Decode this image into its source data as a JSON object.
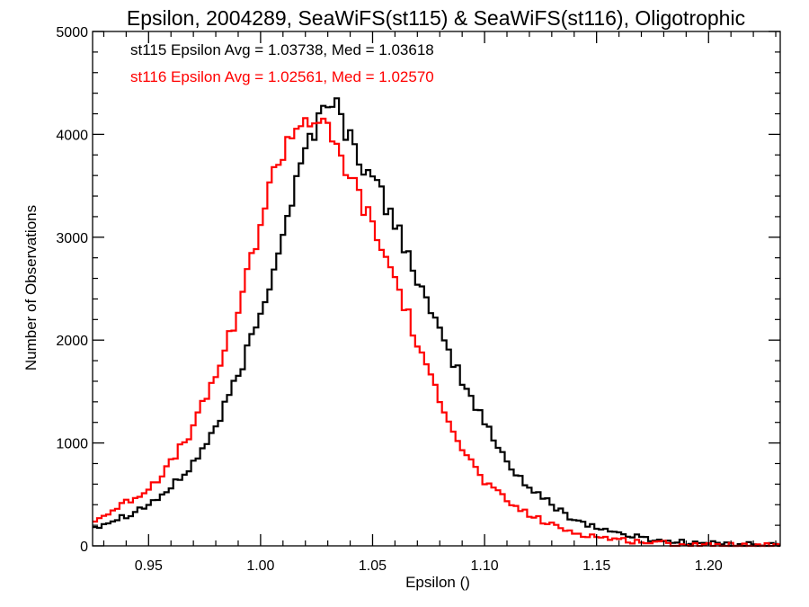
{
  "chart_data": {
    "type": "line",
    "step": true,
    "title": "Epsilon, 2004289, SeaWiFS(st115) & SeaWiFS(st116), Oligotrophic",
    "xlabel": "Epsilon ()",
    "ylabel": "Number of Observations",
    "xlim": [
      0.925,
      1.232
    ],
    "ylim": [
      0,
      5000
    ],
    "x_ticks": [
      0.95,
      1.0,
      1.05,
      1.1,
      1.15,
      1.2
    ],
    "x_tick_labels": [
      "0.95",
      "1.00",
      "1.05",
      "1.10",
      "1.15",
      "1.20"
    ],
    "y_ticks": [
      0,
      1000,
      2000,
      3000,
      4000,
      5000
    ],
    "y_tick_labels": [
      "0",
      "1000",
      "2000",
      "3000",
      "4000",
      "5000"
    ],
    "grid": false,
    "annotations": [
      {
        "text": "st115 Epsilon Avg = 1.03738, Med = 1.03618",
        "color": "#000000"
      },
      {
        "text": "st116 Epsilon Avg = 1.02561, Med = 1.02570",
        "color": "#ff0000"
      }
    ],
    "series": [
      {
        "color": "#000000",
        "x": [
          0.925,
          0.94,
          0.95,
          0.96,
          0.97,
          0.98,
          0.99,
          0.995,
          1.0,
          1.005,
          1.01,
          1.015,
          1.02,
          1.025,
          1.028,
          1.032,
          1.035,
          1.04,
          1.045,
          1.05,
          1.055,
          1.06,
          1.065,
          1.07,
          1.075,
          1.08,
          1.085,
          1.09,
          1.095,
          1.1,
          1.105,
          1.11,
          1.12,
          1.13,
          1.14,
          1.15,
          1.16,
          1.17,
          1.18,
          1.19,
          1.2,
          1.21,
          1.22,
          1.232
        ],
        "y": [
          180,
          300,
          400,
          560,
          800,
          1150,
          1650,
          1950,
          2250,
          2650,
          3050,
          3450,
          3850,
          4100,
          4250,
          4380,
          4200,
          3950,
          3750,
          3550,
          3350,
          3150,
          2900,
          2600,
          2300,
          2050,
          1850,
          1600,
          1400,
          1200,
          1000,
          820,
          560,
          400,
          260,
          180,
          120,
          80,
          50,
          35,
          25,
          15,
          10,
          5
        ]
      },
      {
        "color": "#ff0000",
        "x": [
          0.925,
          0.94,
          0.95,
          0.96,
          0.97,
          0.98,
          0.99,
          0.995,
          1.0,
          1.005,
          1.01,
          1.015,
          1.02,
          1.025,
          1.03,
          1.035,
          1.04,
          1.045,
          1.05,
          1.055,
          1.06,
          1.065,
          1.07,
          1.075,
          1.08,
          1.085,
          1.09,
          1.095,
          1.1,
          1.11,
          1.12,
          1.13,
          1.14,
          1.15,
          1.16,
          1.17,
          1.18,
          1.19,
          1.2,
          1.21,
          1.22,
          1.232
        ],
        "y": [
          230,
          420,
          560,
          800,
          1150,
          1650,
          2300,
          2700,
          3150,
          3550,
          3850,
          4050,
          4150,
          4150,
          4000,
          3800,
          3600,
          3350,
          3100,
          2850,
          2600,
          2300,
          1950,
          1650,
          1450,
          1200,
          950,
          780,
          620,
          430,
          300,
          200,
          130,
          90,
          60,
          40,
          25,
          15,
          10,
          5,
          3,
          2
        ]
      }
    ]
  }
}
